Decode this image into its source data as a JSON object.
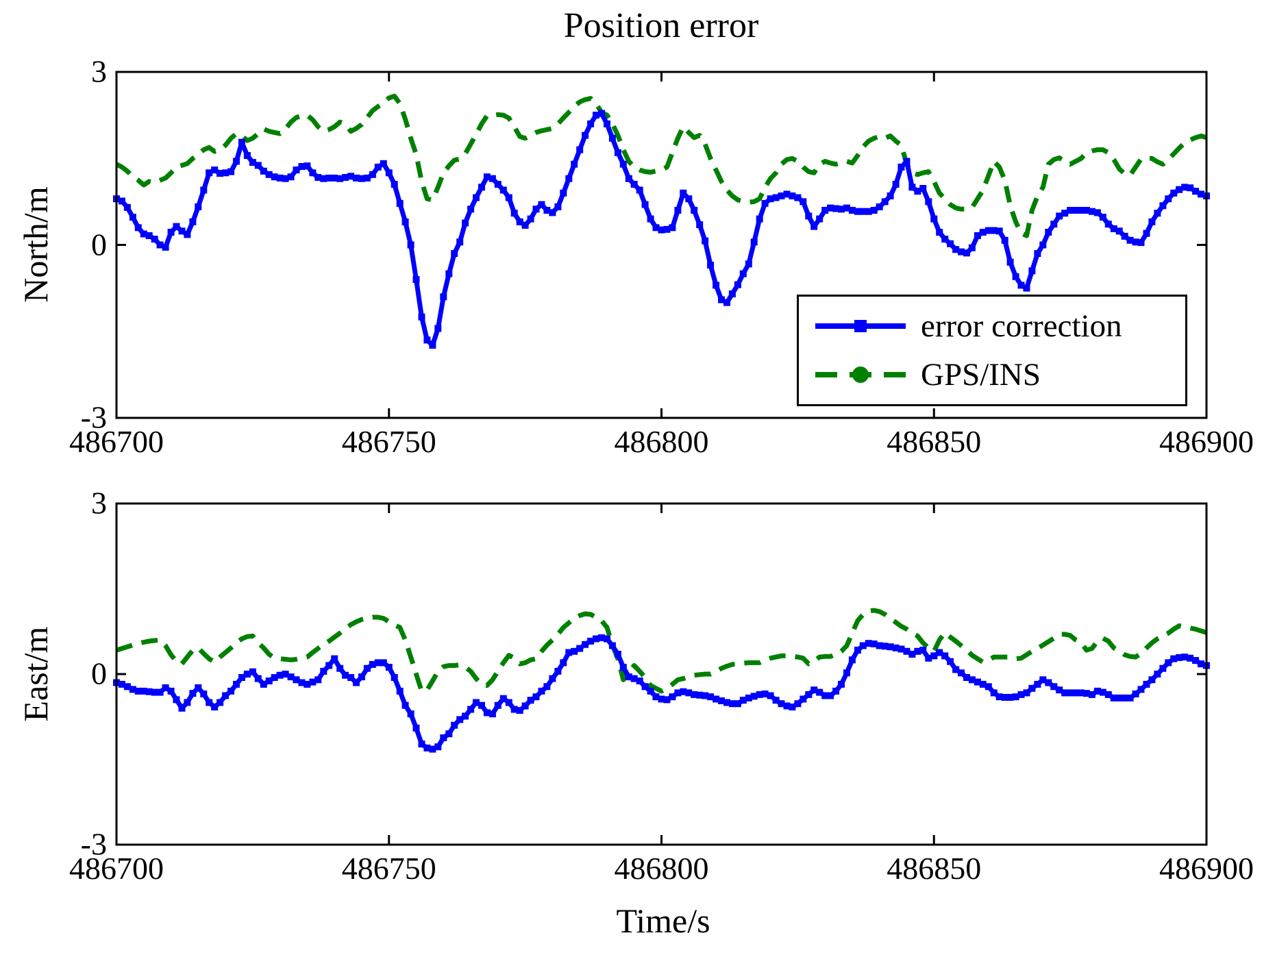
{
  "figure": {
    "background": "#ffffff"
  },
  "colors": {
    "error_correction": "#0000ff",
    "gps_ins": "#008000",
    "axis": "#000000",
    "text": "#000000"
  },
  "legend": {
    "entries": [
      {
        "label": "error correction",
        "series_key": "error_correction",
        "line_style": "solid",
        "marker": "square"
      },
      {
        "label": "GPS/INS",
        "series_key": "gps_ins",
        "line_style": "dashed",
        "marker": "circle"
      }
    ]
  },
  "chart_data": [
    {
      "type": "line",
      "title": "Position error",
      "ylabel": "North/m",
      "xlabel": "",
      "xlim": [
        486700,
        486900
      ],
      "ylim": [
        -3,
        3
      ],
      "xticks": [
        486700,
        486750,
        486800,
        486850,
        486900
      ],
      "xtick_labels": [
        "486700",
        "486750",
        "486800",
        "486850",
        "486900"
      ],
      "yticks": [
        3,
        0,
        -3
      ],
      "ytick_labels": [
        "3",
        "0",
        "-3"
      ],
      "grid": false,
      "legend_position": "inside lower right",
      "series": [
        {
          "name": "error correction",
          "color_key": "error_correction",
          "line_style": "solid",
          "marker": "square",
          "t_start": 486700,
          "dt": 1,
          "values": [
            0.8,
            0.76,
            0.65,
            0.48,
            0.3,
            0.19,
            0.16,
            0.1,
            0.0,
            -0.04,
            0.22,
            0.32,
            0.24,
            0.18,
            0.4,
            0.66,
            0.95,
            1.25,
            1.3,
            1.24,
            1.25,
            1.27,
            1.45,
            1.78,
            1.55,
            1.43,
            1.38,
            1.28,
            1.22,
            1.18,
            1.16,
            1.15,
            1.18,
            1.3,
            1.36,
            1.37,
            1.25,
            1.17,
            1.15,
            1.16,
            1.16,
            1.15,
            1.17,
            1.19,
            1.16,
            1.15,
            1.16,
            1.22,
            1.35,
            1.41,
            1.25,
            1.05,
            0.72,
            0.4,
            0.0,
            -0.6,
            -1.25,
            -1.65,
            -1.74,
            -1.45,
            -0.9,
            -0.5,
            -0.15,
            0.05,
            0.38,
            0.62,
            0.82,
            1.0,
            1.18,
            1.15,
            1.05,
            0.95,
            0.82,
            0.55,
            0.4,
            0.34,
            0.45,
            0.62,
            0.7,
            0.6,
            0.56,
            0.66,
            0.9,
            1.15,
            1.4,
            1.65,
            1.9,
            2.1,
            2.25,
            2.28,
            2.1,
            1.85,
            1.6,
            1.4,
            1.15,
            1.05,
            0.95,
            0.7,
            0.45,
            0.3,
            0.26,
            0.27,
            0.3,
            0.6,
            0.9,
            0.8,
            0.6,
            0.35,
            0.07,
            -0.35,
            -0.7,
            -0.95,
            -1.0,
            -0.85,
            -0.69,
            -0.5,
            -0.33,
            0.05,
            0.45,
            0.72,
            0.8,
            0.82,
            0.85,
            0.88,
            0.85,
            0.82,
            0.75,
            0.5,
            0.32,
            0.45,
            0.6,
            0.64,
            0.63,
            0.62,
            0.64,
            0.6,
            0.58,
            0.58,
            0.58,
            0.6,
            0.66,
            0.75,
            0.85,
            1.05,
            1.35,
            1.45,
            1.0,
            0.93,
            0.98,
            0.75,
            0.45,
            0.22,
            0.1,
            0.02,
            -0.08,
            -0.12,
            -0.14,
            -0.05,
            0.16,
            0.22,
            0.25,
            0.25,
            0.24,
            0.08,
            -0.3,
            -0.55,
            -0.7,
            -0.75,
            -0.45,
            -0.15,
            0.0,
            0.22,
            0.36,
            0.5,
            0.55,
            0.6,
            0.6,
            0.6,
            0.6,
            0.58,
            0.56,
            0.48,
            0.36,
            0.28,
            0.24,
            0.15,
            0.08,
            0.05,
            0.04,
            0.2,
            0.4,
            0.55,
            0.68,
            0.8,
            0.9,
            0.96,
            1.0,
            0.99,
            0.93,
            0.88,
            0.85
          ]
        },
        {
          "name": "GPS/INS",
          "color_key": "gps_ins",
          "line_style": "dashed",
          "marker": "circle",
          "t_start": 486700,
          "dt": 1,
          "values": [
            1.4,
            1.35,
            1.28,
            1.18,
            1.12,
            1.04,
            1.1,
            1.08,
            1.12,
            1.16,
            1.25,
            1.35,
            1.38,
            1.41,
            1.5,
            1.57,
            1.65,
            1.69,
            1.62,
            1.65,
            1.73,
            1.85,
            1.93,
            1.89,
            1.81,
            1.85,
            1.93,
            2.01,
            1.97,
            1.95,
            1.93,
            2.01,
            2.13,
            2.21,
            2.24,
            2.25,
            2.17,
            2.05,
            1.97,
            2.0,
            2.05,
            2.13,
            2.09,
            1.97,
            2.02,
            2.09,
            2.21,
            2.33,
            2.4,
            2.46,
            2.55,
            2.58,
            2.45,
            2.18,
            1.85,
            1.57,
            1.1,
            0.8,
            0.78,
            1.0,
            1.25,
            1.37,
            1.47,
            1.49,
            1.58,
            1.75,
            1.92,
            2.1,
            2.24,
            2.25,
            2.26,
            2.25,
            2.2,
            2.05,
            1.88,
            1.85,
            1.9,
            1.95,
            1.98,
            2.0,
            2.02,
            2.1,
            2.2,
            2.3,
            2.4,
            2.48,
            2.52,
            2.54,
            2.45,
            2.3,
            2.25,
            2.1,
            1.9,
            1.65,
            1.45,
            1.35,
            1.3,
            1.27,
            1.26,
            1.28,
            1.3,
            1.35,
            1.6,
            1.85,
            2.05,
            1.95,
            1.86,
            1.9,
            1.75,
            1.5,
            1.3,
            1.1,
            0.95,
            0.85,
            0.78,
            0.75,
            0.74,
            0.75,
            0.8,
            1.0,
            1.15,
            1.25,
            1.4,
            1.48,
            1.5,
            1.45,
            1.35,
            1.27,
            1.25,
            1.4,
            1.45,
            1.42,
            1.4,
            1.42,
            1.45,
            1.42,
            1.55,
            1.7,
            1.8,
            1.85,
            1.88,
            1.85,
            1.89,
            1.8,
            1.73,
            1.4,
            1.25,
            1.22,
            1.25,
            1.27,
            1.1,
            0.9,
            0.8,
            0.7,
            0.64,
            0.62,
            0.62,
            0.65,
            0.8,
            0.95,
            1.2,
            1.45,
            1.35,
            1.12,
            0.68,
            0.4,
            0.2,
            0.16,
            0.6,
            0.85,
            1.0,
            1.4,
            1.48,
            1.51,
            1.45,
            1.4,
            1.45,
            1.5,
            1.6,
            1.63,
            1.65,
            1.65,
            1.6,
            1.48,
            1.32,
            1.23,
            1.21,
            1.35,
            1.49,
            1.5,
            1.5,
            1.44,
            1.4,
            1.48,
            1.58,
            1.68,
            1.77,
            1.82,
            1.86,
            1.89,
            1.86
          ]
        }
      ]
    },
    {
      "type": "line",
      "title": "",
      "ylabel": "East/m",
      "xlabel": "Time/s",
      "xlim": [
        486700,
        486900
      ],
      "ylim": [
        -3,
        3
      ],
      "xticks": [
        486700,
        486750,
        486800,
        486850,
        486900
      ],
      "xtick_labels": [
        "486700",
        "486750",
        "486800",
        "486850",
        "486900"
      ],
      "yticks": [
        3,
        0,
        -3
      ],
      "ytick_labels": [
        "3",
        "0",
        "-3"
      ],
      "grid": false,
      "legend_position": "none",
      "series": [
        {
          "name": "error correction",
          "color_key": "error_correction",
          "line_style": "solid",
          "marker": "square",
          "t_start": 486700,
          "dt": 1,
          "values": [
            -0.15,
            -0.18,
            -0.22,
            -0.27,
            -0.3,
            -0.3,
            -0.31,
            -0.32,
            -0.32,
            -0.24,
            -0.3,
            -0.45,
            -0.6,
            -0.5,
            -0.34,
            -0.24,
            -0.35,
            -0.5,
            -0.58,
            -0.5,
            -0.38,
            -0.3,
            -0.18,
            -0.06,
            0.0,
            0.04,
            -0.08,
            -0.18,
            -0.12,
            -0.06,
            -0.02,
            0.0,
            -0.05,
            -0.1,
            -0.15,
            -0.18,
            -0.14,
            -0.1,
            0.05,
            0.15,
            0.27,
            0.1,
            -0.02,
            -0.06,
            -0.15,
            -0.05,
            0.1,
            0.17,
            0.2,
            0.2,
            0.12,
            -0.06,
            -0.3,
            -0.55,
            -0.7,
            -0.95,
            -1.23,
            -1.3,
            -1.32,
            -1.28,
            -1.12,
            -1.05,
            -0.9,
            -0.8,
            -0.74,
            -0.62,
            -0.5,
            -0.55,
            -0.68,
            -0.7,
            -0.55,
            -0.43,
            -0.5,
            -0.62,
            -0.64,
            -0.56,
            -0.46,
            -0.4,
            -0.3,
            -0.22,
            -0.08,
            0.05,
            0.2,
            0.38,
            0.4,
            0.45,
            0.52,
            0.58,
            0.62,
            0.64,
            0.62,
            0.5,
            0.35,
            0.12,
            -0.05,
            -0.08,
            -0.12,
            -0.22,
            -0.3,
            -0.4,
            -0.44,
            -0.45,
            -0.4,
            -0.33,
            -0.31,
            -0.33,
            -0.36,
            -0.37,
            -0.38,
            -0.4,
            -0.44,
            -0.47,
            -0.5,
            -0.52,
            -0.52,
            -0.46,
            -0.42,
            -0.39,
            -0.36,
            -0.35,
            -0.38,
            -0.46,
            -0.52,
            -0.56,
            -0.58,
            -0.52,
            -0.44,
            -0.36,
            -0.28,
            -0.32,
            -0.38,
            -0.38,
            -0.3,
            -0.18,
            0.02,
            0.25,
            0.42,
            0.5,
            0.54,
            0.53,
            0.5,
            0.49,
            0.48,
            0.46,
            0.44,
            0.4,
            0.35,
            0.4,
            0.42,
            0.28,
            0.32,
            0.38,
            0.32,
            0.22,
            0.08,
            0.02,
            -0.06,
            -0.1,
            -0.14,
            -0.18,
            -0.22,
            -0.33,
            -0.4,
            -0.41,
            -0.41,
            -0.4,
            -0.36,
            -0.33,
            -0.25,
            -0.18,
            -0.1,
            -0.15,
            -0.22,
            -0.28,
            -0.33,
            -0.33,
            -0.33,
            -0.33,
            -0.34,
            -0.36,
            -0.3,
            -0.32,
            -0.36,
            -0.42,
            -0.42,
            -0.42,
            -0.42,
            -0.35,
            -0.27,
            -0.18,
            -0.1,
            0.0,
            0.1,
            0.2,
            0.27,
            0.29,
            0.3,
            0.28,
            0.24,
            0.18,
            0.15
          ]
        },
        {
          "name": "GPS/INS",
          "color_key": "gps_ins",
          "line_style": "dashed",
          "marker": "circle",
          "t_start": 486700,
          "dt": 1,
          "values": [
            0.42,
            0.45,
            0.48,
            0.51,
            0.54,
            0.56,
            0.58,
            0.59,
            0.6,
            0.5,
            0.34,
            0.22,
            0.18,
            0.3,
            0.42,
            0.46,
            0.36,
            0.27,
            0.21,
            0.3,
            0.38,
            0.46,
            0.55,
            0.62,
            0.66,
            0.67,
            0.55,
            0.46,
            0.35,
            0.28,
            0.27,
            0.26,
            0.25,
            0.26,
            0.28,
            0.3,
            0.38,
            0.45,
            0.52,
            0.58,
            0.65,
            0.72,
            0.8,
            0.87,
            0.92,
            0.96,
            0.98,
            1.0,
            1.0,
            0.98,
            0.92,
            0.86,
            0.82,
            0.6,
            0.3,
            0.0,
            -0.3,
            -0.28,
            -0.12,
            0.05,
            0.13,
            0.15,
            0.15,
            0.16,
            0.12,
            0.05,
            -0.08,
            -0.18,
            -0.2,
            -0.1,
            0.05,
            0.2,
            0.33,
            0.28,
            0.18,
            0.2,
            0.25,
            0.27,
            0.4,
            0.51,
            0.6,
            0.7,
            0.82,
            0.9,
            0.98,
            1.03,
            1.06,
            1.05,
            1.0,
            0.94,
            0.82,
            0.51,
            0.27,
            -0.1,
            0.05,
            0.15,
            0.05,
            -0.06,
            -0.2,
            -0.25,
            -0.3,
            -0.25,
            -0.18,
            -0.1,
            -0.08,
            -0.05,
            -0.02,
            -0.01,
            0.0,
            0.0,
            0.05,
            0.1,
            0.14,
            0.17,
            0.18,
            0.19,
            0.2,
            0.2,
            0.2,
            0.25,
            0.28,
            0.3,
            0.32,
            0.32,
            0.31,
            0.3,
            0.28,
            0.18,
            0.22,
            0.3,
            0.31,
            0.31,
            0.35,
            0.4,
            0.5,
            0.72,
            0.94,
            1.05,
            1.11,
            1.12,
            1.1,
            1.05,
            0.98,
            0.91,
            0.84,
            0.79,
            0.72,
            0.67,
            0.55,
            0.46,
            0.4,
            0.6,
            0.73,
            0.65,
            0.58,
            0.5,
            0.42,
            0.33,
            0.27,
            0.21,
            0.25,
            0.3,
            0.3,
            0.3,
            0.3,
            0.27,
            0.28,
            0.34,
            0.4,
            0.45,
            0.51,
            0.57,
            0.63,
            0.7,
            0.7,
            0.68,
            0.6,
            0.55,
            0.42,
            0.45,
            0.58,
            0.63,
            0.58,
            0.46,
            0.4,
            0.34,
            0.31,
            0.3,
            0.36,
            0.46,
            0.55,
            0.62,
            0.67,
            0.72,
            0.79,
            0.85,
            0.83,
            0.81,
            0.79,
            0.76,
            0.73
          ]
        }
      ]
    }
  ]
}
